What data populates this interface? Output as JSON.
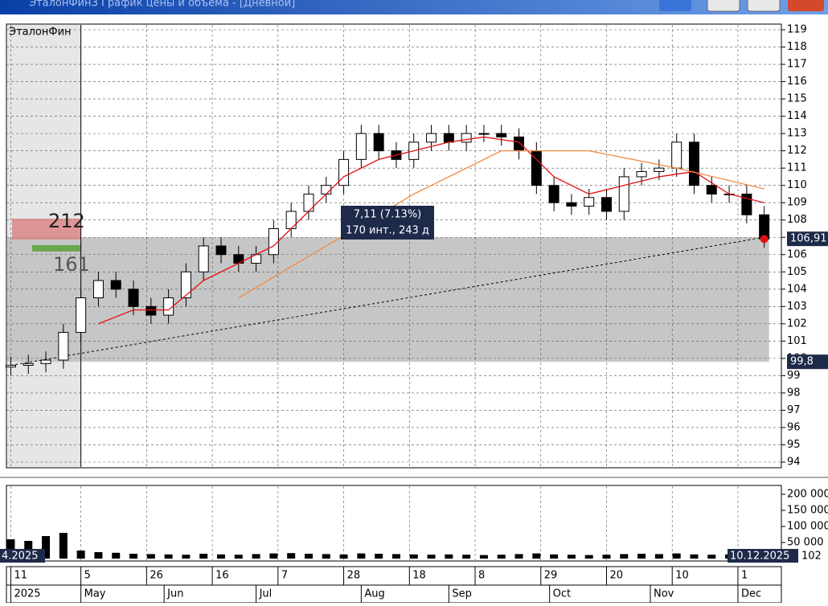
{
  "window_title": "ЭталонФинЗ График цены и объема - [Дневной]",
  "chart_data": [
    {
      "type": "candlestick",
      "title": "ЭталонФин",
      "x": [
        0,
        4,
        8,
        12,
        16,
        20,
        24,
        28,
        32,
        36,
        40,
        44,
        48,
        52,
        56,
        60,
        64,
        68,
        72,
        76,
        80,
        84,
        88,
        92,
        96,
        100,
        104,
        108,
        112,
        116,
        120,
        124,
        128,
        132,
        136,
        140,
        144,
        148,
        152,
        156,
        160,
        164,
        168,
        172
      ],
      "open": [
        99.5,
        99.6,
        99.7,
        99.9,
        101.5,
        103.5,
        104.5,
        104,
        103,
        102.5,
        103.5,
        105,
        106.5,
        106,
        105.5,
        106,
        107.5,
        108.5,
        109.5,
        110,
        111.5,
        113,
        112,
        111.5,
        112.5,
        113,
        112.5,
        113,
        113,
        112.8,
        112,
        110,
        109,
        108.8,
        109.3,
        108.5,
        110.5,
        110.8,
        111,
        112.5,
        110,
        109.5,
        109.5,
        108.3
      ],
      "high": [
        100.1,
        100.2,
        100.4,
        102.0,
        104.0,
        105.0,
        105.0,
        104.5,
        103.5,
        104.0,
        105.5,
        107.0,
        107.0,
        106.5,
        106.5,
        108.0,
        109.0,
        110.0,
        110.5,
        112.0,
        113.5,
        113.5,
        112.5,
        113.0,
        113.5,
        113.5,
        113.5,
        113.5,
        113.5,
        113.3,
        112.5,
        110.5,
        109.5,
        109.8,
        109.8,
        111.0,
        111.3,
        111.5,
        113.0,
        113.0,
        110.5,
        110.0,
        110.0,
        108.8
      ],
      "low": [
        99.0,
        99.1,
        99.2,
        99.4,
        101.0,
        103.0,
        103.5,
        102.5,
        102.0,
        102.0,
        103.0,
        104.5,
        105.5,
        105.0,
        105.0,
        105.5,
        107.0,
        108.0,
        109.0,
        109.5,
        111.0,
        111.5,
        111.0,
        111.0,
        112.0,
        112.0,
        112.0,
        112.5,
        112.3,
        111.5,
        109.5,
        108.5,
        108.3,
        108.3,
        108.0,
        108.0,
        110.0,
        110.3,
        110.5,
        109.5,
        109.0,
        109.0,
        107.8,
        106.4
      ],
      "close": [
        99.6,
        99.7,
        99.9,
        101.5,
        103.5,
        104.5,
        104,
        103,
        102.5,
        103.5,
        105,
        106.5,
        106,
        105.5,
        106,
        107.5,
        108.5,
        109.5,
        110,
        111.5,
        113,
        112,
        111.5,
        112.5,
        113,
        112.5,
        113,
        113,
        112.8,
        112,
        110,
        109,
        108.8,
        109.3,
        108.5,
        110.5,
        110.8,
        111,
        112.5,
        110,
        109.5,
        109.5,
        108.3,
        106.9
      ],
      "lines": [
        {
          "color": "#e01010",
          "x": [
            20,
            28,
            36,
            44,
            52,
            60,
            68,
            76,
            84,
            92,
            100,
            108,
            116,
            124,
            132,
            140,
            148,
            156,
            164,
            172
          ],
          "values": [
            102,
            102.8,
            102.8,
            104.5,
            105.5,
            106.5,
            108.5,
            110.5,
            111.5,
            112,
            112.5,
            112.8,
            112.5,
            110.5,
            109.5,
            110,
            110.5,
            110.8,
            109.5,
            109
          ]
        },
        {
          "color": "#f08a40",
          "x": [
            52,
            72,
            92,
            112,
            132,
            152,
            172
          ],
          "values": [
            103.5,
            106.5,
            109.5,
            112,
            112,
            111,
            109.8
          ]
        }
      ],
      "trend": {
        "x": [
          0,
          172
        ],
        "values": [
          99.6,
          107
        ]
      },
      "band": [
        99.8,
        107
      ],
      "band_labels": [
        {
          "value": 106.91,
          "label": "106,91"
        },
        {
          "value": 99.8,
          "label": "99,8"
        }
      ],
      "annotation": [
        "7,11 (7.13%)",
        "170 инт., 243 д"
      ],
      "profile_labels": [
        "212",
        "161"
      ],
      "xlim": [
        -1,
        175
      ],
      "ylim": [
        94,
        119
      ],
      "yticks": [
        94,
        95,
        96,
        97,
        98,
        99,
        100,
        101,
        102,
        103,
        104,
        105,
        106,
        107,
        108,
        109,
        110,
        111,
        112,
        113,
        114,
        115,
        116,
        117,
        118,
        119
      ],
      "xticks": [
        {
          "value": 0,
          "label": "11"
        },
        {
          "value": 16,
          "label": "5"
        },
        {
          "value": 31,
          "label": "26"
        },
        {
          "value": 46,
          "label": "16"
        },
        {
          "value": 61,
          "label": "7"
        },
        {
          "value": 76,
          "label": "28"
        },
        {
          "value": 91,
          "label": "18"
        },
        {
          "value": 106,
          "label": "8"
        },
        {
          "value": 121,
          "label": "29"
        },
        {
          "value": 136,
          "label": "20"
        },
        {
          "value": 151,
          "label": "10"
        },
        {
          "value": 166,
          "label": "1"
        }
      ],
      "month_ticks": [
        {
          "value": 0,
          "label": "2025"
        },
        {
          "value": 16,
          "label": "May"
        },
        {
          "value": 35,
          "label": "Jun"
        },
        {
          "value": 56,
          "label": "Jul"
        },
        {
          "value": 80,
          "label": "Aug"
        },
        {
          "value": 100,
          "label": "Sep"
        },
        {
          "value": 123,
          "label": "Oct"
        },
        {
          "value": 146,
          "label": "Nov"
        },
        {
          "value": 166,
          "label": "Dec"
        }
      ],
      "grid": true
    },
    {
      "type": "bar",
      "color": "#000000",
      "x": [
        0,
        4,
        8,
        12,
        16,
        20,
        24,
        28,
        32,
        36,
        40,
        44,
        48,
        52,
        56,
        60,
        64,
        68,
        72,
        76,
        80,
        84,
        88,
        92,
        96,
        100,
        104,
        108,
        112,
        116,
        120,
        124,
        128,
        132,
        136,
        140,
        144,
        148,
        152,
        156,
        160,
        164,
        168,
        172
      ],
      "values": [
        60000,
        55000,
        70000,
        80000,
        25000,
        20000,
        18000,
        15000,
        14000,
        13000,
        12000,
        15000,
        13000,
        12000,
        14000,
        16000,
        17000,
        15000,
        14000,
        13000,
        16000,
        15000,
        14000,
        13000,
        12000,
        13000,
        12000,
        11000,
        12000,
        14000,
        16000,
        13000,
        12000,
        11000,
        12000,
        14000,
        15000,
        14000,
        16000,
        13000,
        12000,
        13000,
        14000,
        15000
      ],
      "ylim": [
        0,
        210000
      ],
      "yticks": [
        {
          "value": 50000,
          "label": "50 000"
        },
        {
          "value": 100000,
          "label": "100 000"
        },
        {
          "value": 150000,
          "label": "150 000"
        },
        {
          "value": 200000,
          "label": "200 000"
        }
      ],
      "range_labels": [
        "4.2025",
        "10.12.2025"
      ],
      "right_label": "102"
    }
  ]
}
